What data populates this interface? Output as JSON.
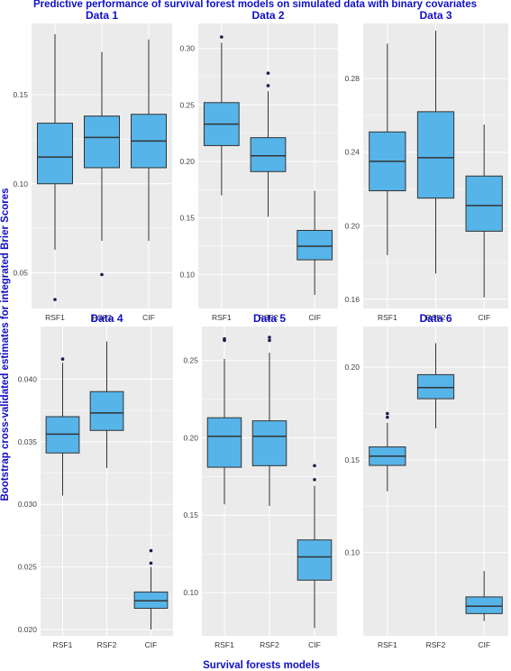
{
  "title": "Predictive performance of survival forest models on simulated data with binary covariates",
  "xlabel": "Survival forests models",
  "ylabel": "Bootstrap cross-validated estimates for integrated Brier Scores",
  "colors": {
    "box_fill": "#56b4e9",
    "panel_bg": "#ebebeb",
    "grid": "#ffffff",
    "title": "#1010c8",
    "outlier": "#1a1a4a"
  },
  "chart_data": [
    {
      "type": "boxplot",
      "title": "Data 1",
      "categories": [
        "RSF1",
        "RSF2",
        "CIF"
      ],
      "ylim": [
        0.03,
        0.19
      ],
      "yticks": [
        0.05,
        0.1,
        0.15
      ],
      "boxes": [
        {
          "whisker_low": 0.063,
          "q1": 0.1,
          "median": 0.115,
          "q3": 0.134,
          "whisker_high": 0.184,
          "outliers": [
            0.035
          ]
        },
        {
          "whisker_low": 0.068,
          "q1": 0.109,
          "median": 0.126,
          "q3": 0.138,
          "whisker_high": 0.174,
          "outliers": [
            0.049
          ]
        },
        {
          "whisker_low": 0.068,
          "q1": 0.109,
          "median": 0.124,
          "q3": 0.139,
          "whisker_high": 0.181,
          "outliers": []
        }
      ]
    },
    {
      "type": "boxplot",
      "title": "Data 2",
      "categories": [
        "RSF1",
        "RSF2",
        "CIF"
      ],
      "ylim": [
        0.07,
        0.322
      ],
      "yticks": [
        0.1,
        0.15,
        0.2,
        0.25,
        0.3
      ],
      "boxes": [
        {
          "whisker_low": 0.17,
          "q1": 0.214,
          "median": 0.233,
          "q3": 0.252,
          "whisker_high": 0.305,
          "outliers": [
            0.31
          ]
        },
        {
          "whisker_low": 0.151,
          "q1": 0.191,
          "median": 0.205,
          "q3": 0.221,
          "whisker_high": 0.262,
          "outliers": [
            0.267,
            0.278
          ]
        },
        {
          "whisker_low": 0.082,
          "q1": 0.113,
          "median": 0.125,
          "q3": 0.139,
          "whisker_high": 0.174,
          "outliers": []
        }
      ]
    },
    {
      "type": "boxplot",
      "title": "Data 3",
      "categories": [
        "RSF1",
        "RSF2",
        "CIF"
      ],
      "ylim": [
        0.155,
        0.31
      ],
      "yticks": [
        0.16,
        0.2,
        0.24,
        0.28
      ],
      "boxes": [
        {
          "whisker_low": 0.184,
          "q1": 0.219,
          "median": 0.235,
          "q3": 0.251,
          "whisker_high": 0.299,
          "outliers": []
        },
        {
          "whisker_low": 0.174,
          "q1": 0.215,
          "median": 0.237,
          "q3": 0.262,
          "whisker_high": 0.306,
          "outliers": []
        },
        {
          "whisker_low": 0.161,
          "q1": 0.197,
          "median": 0.211,
          "q3": 0.227,
          "whisker_high": 0.255,
          "outliers": []
        }
      ]
    },
    {
      "type": "boxplot",
      "title": "Data 4",
      "categories": [
        "RSF1",
        "RSF2",
        "CIF"
      ],
      "ylim": [
        0.0195,
        0.0442
      ],
      "yticks": [
        0.02,
        0.025,
        0.03,
        0.035,
        0.04
      ],
      "boxes": [
        {
          "whisker_low": 0.0307,
          "q1": 0.0341,
          "median": 0.0356,
          "q3": 0.037,
          "whisker_high": 0.0413,
          "outliers": [
            0.0416
          ]
        },
        {
          "whisker_low": 0.0329,
          "q1": 0.0359,
          "median": 0.0373,
          "q3": 0.039,
          "whisker_high": 0.043,
          "outliers": []
        },
        {
          "whisker_low": 0.02,
          "q1": 0.0217,
          "median": 0.0223,
          "q3": 0.023,
          "whisker_high": 0.025,
          "outliers": [
            0.0253,
            0.0263
          ]
        }
      ]
    },
    {
      "type": "boxplot",
      "title": "Data 5",
      "categories": [
        "RSF1",
        "RSF2",
        "CIF"
      ],
      "ylim": [
        0.072,
        0.272
      ],
      "yticks": [
        0.1,
        0.15,
        0.2,
        0.25
      ],
      "boxes": [
        {
          "whisker_low": 0.157,
          "q1": 0.181,
          "median": 0.201,
          "q3": 0.213,
          "whisker_high": 0.251,
          "outliers": [
            0.263,
            0.264
          ]
        },
        {
          "whisker_low": 0.156,
          "q1": 0.182,
          "median": 0.201,
          "q3": 0.211,
          "whisker_high": 0.255,
          "outliers": [
            0.263,
            0.265
          ]
        },
        {
          "whisker_low": 0.077,
          "q1": 0.108,
          "median": 0.123,
          "q3": 0.134,
          "whisker_high": 0.169,
          "outliers": [
            0.173,
            0.182
          ]
        }
      ]
    },
    {
      "type": "boxplot",
      "title": "Data 6",
      "categories": [
        "RSF1",
        "RSF2",
        "CIF"
      ],
      "ylim": [
        0.055,
        0.222
      ],
      "yticks": [
        0.1,
        0.15,
        0.2
      ],
      "boxes": [
        {
          "whisker_low": 0.133,
          "q1": 0.147,
          "median": 0.152,
          "q3": 0.157,
          "whisker_high": 0.17,
          "outliers": [
            0.173,
            0.175
          ]
        },
        {
          "whisker_low": 0.167,
          "q1": 0.183,
          "median": 0.189,
          "q3": 0.196,
          "whisker_high": 0.213,
          "outliers": []
        },
        {
          "whisker_low": 0.063,
          "q1": 0.067,
          "median": 0.071,
          "q3": 0.076,
          "whisker_high": 0.09,
          "outliers": []
        }
      ]
    }
  ]
}
